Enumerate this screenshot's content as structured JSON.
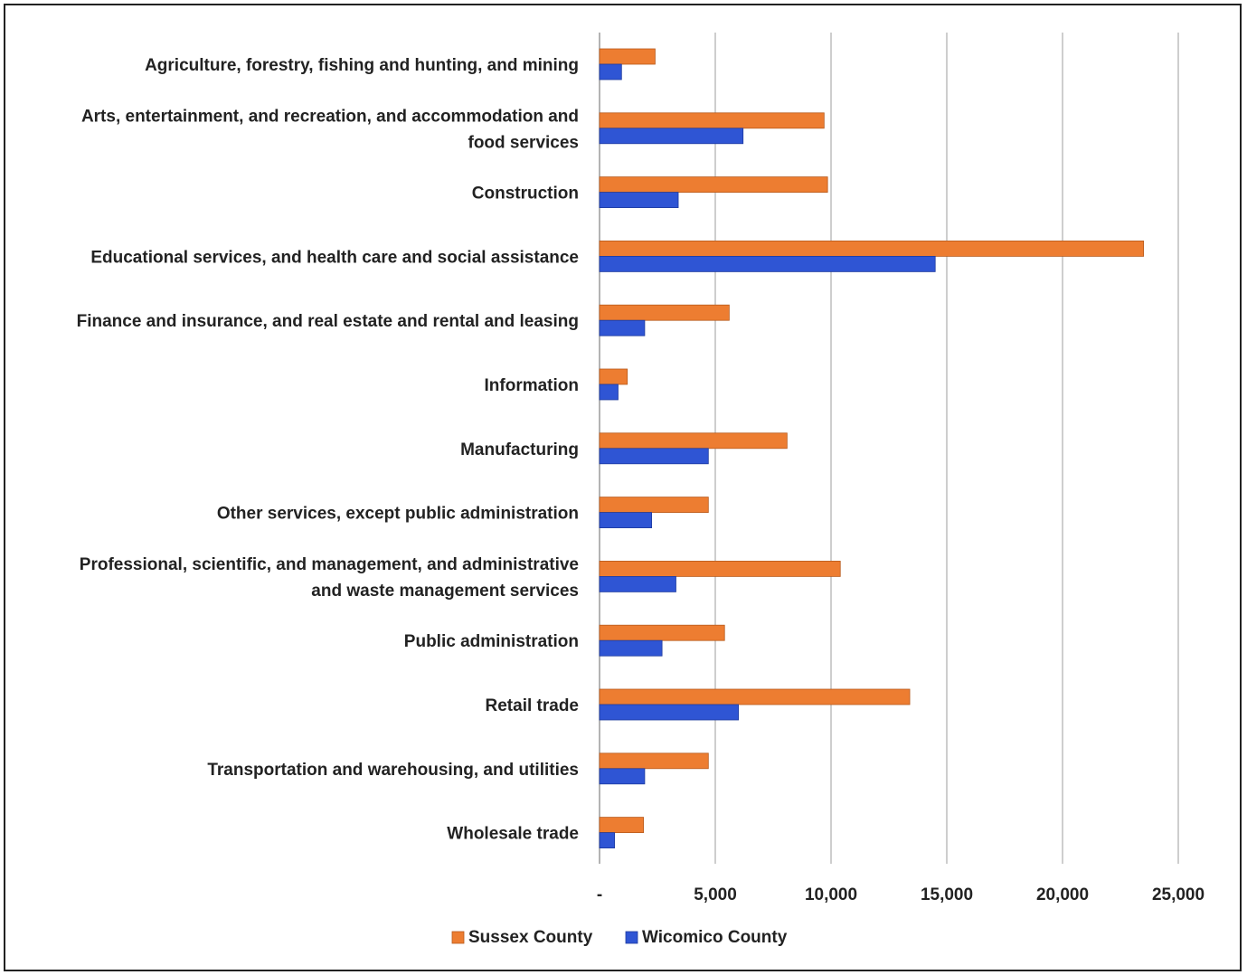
{
  "chart_data": {
    "type": "bar",
    "orientation": "horizontal",
    "title": "",
    "xlabel": "",
    "ylabel": "",
    "xlim": [
      0,
      25000
    ],
    "xticks": [
      0,
      5000,
      10000,
      15000,
      20000,
      25000
    ],
    "xtick_labels": [
      "-",
      "5,000",
      "10,000",
      "15,000",
      "20,000",
      "25,000"
    ],
    "grid": "vertical",
    "legend_position": "bottom",
    "categories": [
      [
        "Agriculture, forestry, fishing and hunting, and mining"
      ],
      [
        "Arts, entertainment, and recreation, and accommodation and",
        "food services"
      ],
      [
        "Construction"
      ],
      [
        "Educational services, and health care and social assistance"
      ],
      [
        "Finance and insurance, and real estate and rental and leasing"
      ],
      [
        "Information"
      ],
      [
        "Manufacturing"
      ],
      [
        "Other services, except public administration"
      ],
      [
        "Professional, scientific, and management, and administrative",
        "and waste management services"
      ],
      [
        "Public administration"
      ],
      [
        "Retail trade"
      ],
      [
        "Transportation and warehousing, and utilities"
      ],
      [
        "Wholesale trade"
      ]
    ],
    "series": [
      {
        "name": "Sussex County",
        "color": "#ed7d31",
        "values": [
          2400,
          9700,
          9850,
          23500,
          5600,
          1200,
          8100,
          4700,
          10400,
          5400,
          13400,
          4700,
          1900
        ]
      },
      {
        "name": "Wicomico County",
        "color": "#2f55d4",
        "values": [
          950,
          6200,
          3400,
          14500,
          1950,
          800,
          4700,
          2250,
          3300,
          2700,
          6000,
          1950,
          650
        ]
      }
    ]
  }
}
